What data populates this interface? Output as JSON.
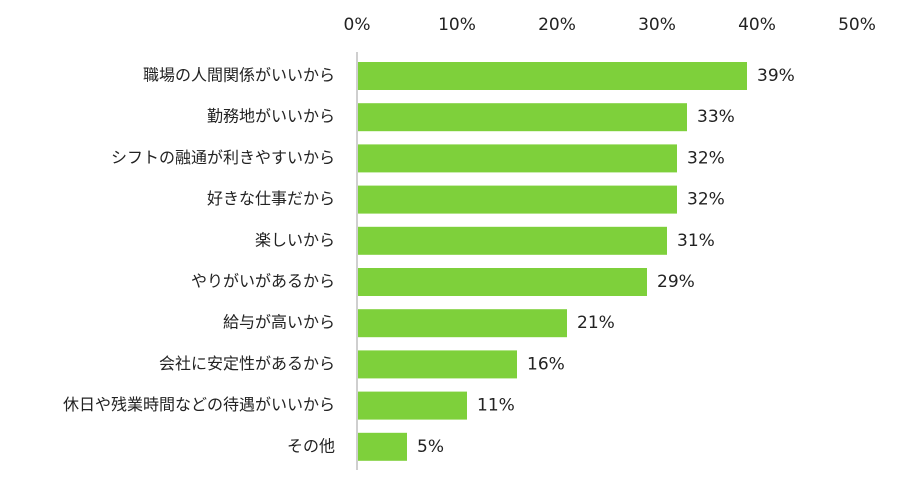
{
  "chart_data": {
    "type": "bar",
    "orientation": "horizontal",
    "categories": [
      "職場の人間関係がいいから",
      "勤務地がいいから",
      "シフトの融通が利きやすいから",
      "好きな仕事だから",
      "楽しいから",
      "やりがいがあるから",
      "給与が高いから",
      "会社に安定性があるから",
      "休日や残業時間などの待遇がいいから",
      "その他"
    ],
    "values": [
      39,
      33,
      32,
      32,
      31,
      29,
      21,
      16,
      11,
      5
    ],
    "value_labels": [
      "39%",
      "33%",
      "32%",
      "32%",
      "31%",
      "29%",
      "21%",
      "16%",
      "11%",
      "5%"
    ],
    "xlim": [
      0,
      50
    ],
    "ticks": [
      0,
      10,
      20,
      30,
      40,
      50
    ],
    "tick_labels": [
      "0%",
      "10%",
      "20%",
      "30%",
      "40%",
      "50%"
    ],
    "axis_position": "top",
    "grid": false,
    "legend": "none",
    "bar_color": "#7ed03b",
    "axis_color": "#bfbfbf"
  }
}
